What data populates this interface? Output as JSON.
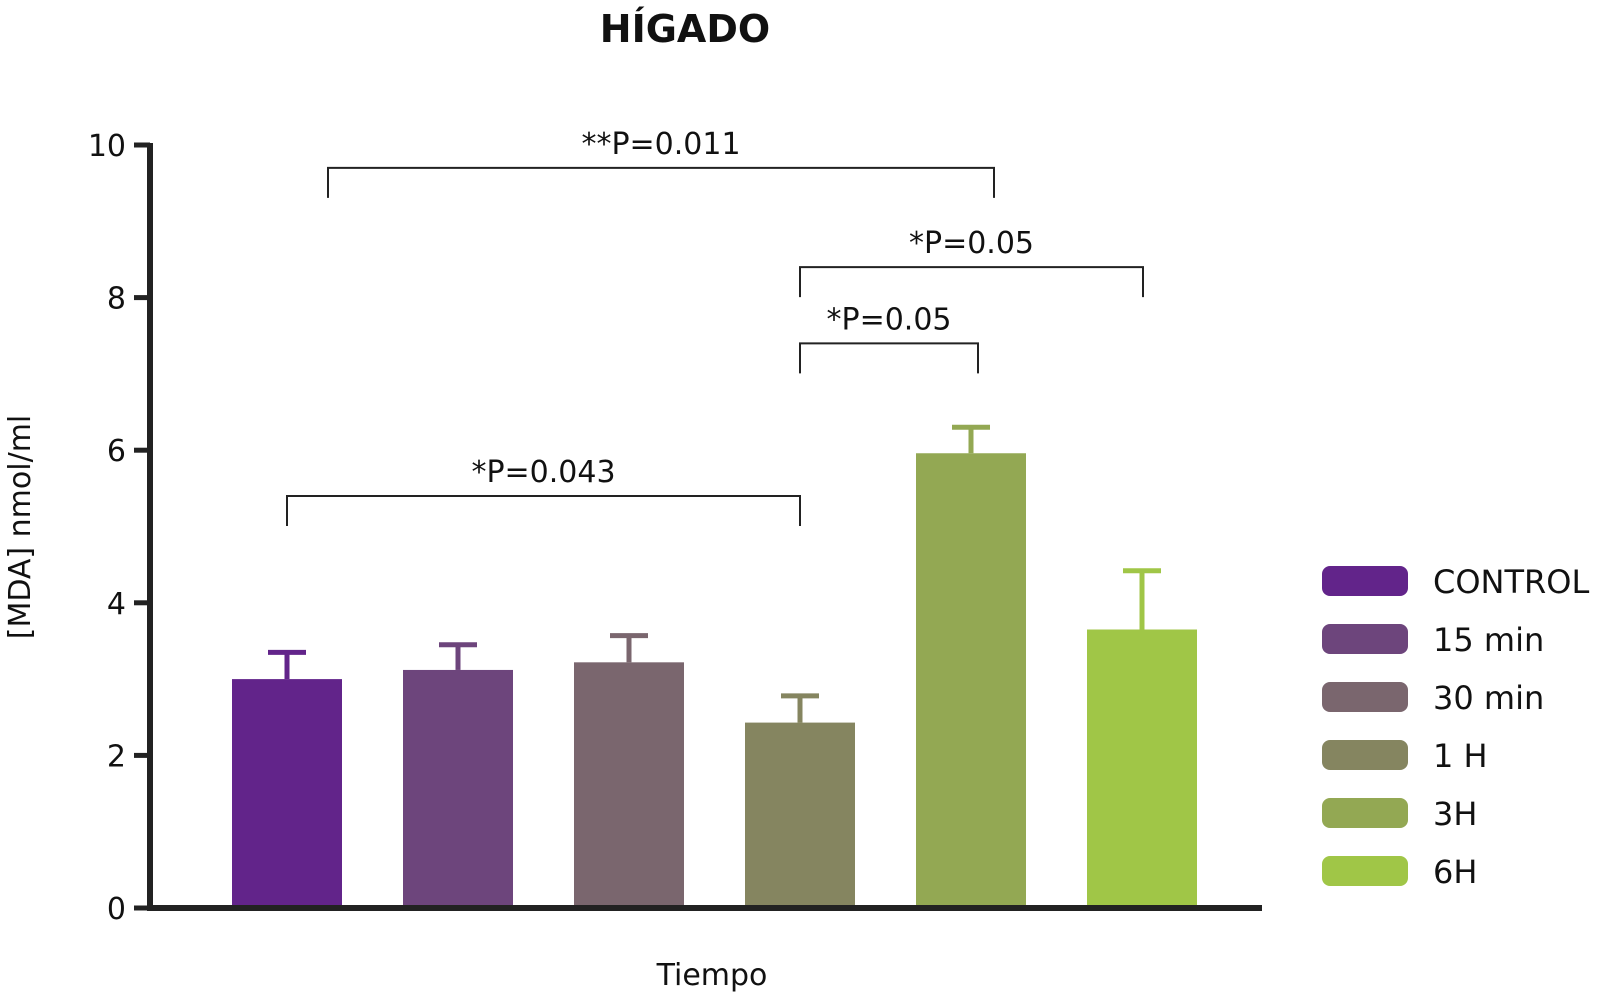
{
  "chart_data": {
    "type": "bar",
    "title": "HÍGADO",
    "xlabel": "Tiempo",
    "ylabel": "[MDA] nmol/ml",
    "ylim": [
      0,
      10
    ],
    "yticks": [
      "0",
      "2",
      "4",
      "6",
      "8",
      "10"
    ],
    "ytick_values": [
      0,
      2,
      4,
      6,
      8,
      10
    ],
    "grid": false,
    "legend_position": "right",
    "categories": [
      "CONTROL",
      "15 min",
      "30 min",
      "1 H",
      "3H",
      "6H"
    ],
    "values": [
      3.0,
      3.12,
      3.22,
      2.43,
      5.96,
      3.65
    ],
    "error_upper": [
      0.35,
      0.33,
      0.35,
      0.35,
      0.34,
      0.77
    ],
    "colors": [
      "#62248A",
      "#6D457C",
      "#7A666E",
      "#858560",
      "#93A853",
      "#A0C647"
    ],
    "annotations": [
      {
        "text": "**P=0.011",
        "from": 0,
        "to": 4,
        "level": 9.7
      },
      {
        "text": "*P=0.05",
        "from": 3,
        "to": 5,
        "level": 8.4
      },
      {
        "text": "*P=0.05",
        "from": 3,
        "to": 4,
        "level": 7.4
      },
      {
        "text": "*P=0.043",
        "from": 0,
        "to": 3,
        "level": 5.4
      }
    ]
  }
}
